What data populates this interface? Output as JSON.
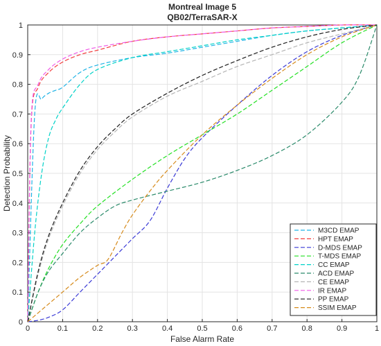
{
  "chart_data": {
    "type": "line",
    "title": "Montreal Image 5",
    "subtitle": "QB02/TerraSAR-X",
    "xlabel": "False Alarm Rate",
    "ylabel": "Detection Probability",
    "xlim": [
      0,
      1
    ],
    "ylim": [
      0,
      1
    ],
    "xticks": [
      "0",
      "0.1",
      "0.2",
      "0.3",
      "0.4",
      "0.5",
      "0.6",
      "0.7",
      "0.8",
      "0.9",
      "1"
    ],
    "yticks": [
      "0",
      "0.1",
      "0.2",
      "0.3",
      "0.4",
      "0.5",
      "0.6",
      "0.7",
      "0.8",
      "0.9",
      "1"
    ],
    "grid": true,
    "legend_position": "bottom-right",
    "line_style": "dashed",
    "series": [
      {
        "name": "M3CD EMAP",
        "color": "#1fb3e6",
        "x": [
          0,
          0.02,
          0.04,
          0.06,
          0.08,
          0.1,
          0.15,
          0.2,
          0.3,
          0.4,
          0.5,
          0.6,
          0.7,
          0.8,
          0.9,
          1
        ],
        "y": [
          0,
          0.7,
          0.75,
          0.77,
          0.78,
          0.79,
          0.84,
          0.865,
          0.89,
          0.905,
          0.925,
          0.945,
          0.965,
          0.98,
          0.99,
          1
        ]
      },
      {
        "name": "HPT EMAP",
        "color": "#f23c3c",
        "x": [
          0,
          0.01,
          0.03,
          0.06,
          0.1,
          0.15,
          0.2,
          0.3,
          0.4,
          0.5,
          0.6,
          0.7,
          0.8,
          0.9,
          1
        ],
        "y": [
          0,
          0.67,
          0.79,
          0.84,
          0.875,
          0.9,
          0.915,
          0.945,
          0.96,
          0.97,
          0.98,
          0.99,
          0.995,
          1,
          1
        ]
      },
      {
        "name": "D-MDS EMAP",
        "color": "#3a3ad6",
        "x": [
          0,
          0.03,
          0.06,
          0.1,
          0.15,
          0.2,
          0.25,
          0.3,
          0.35,
          0.4,
          0.45,
          0.5,
          0.6,
          0.7,
          0.8,
          0.9,
          1
        ],
        "y": [
          0,
          0.005,
          0.015,
          0.04,
          0.1,
          0.16,
          0.22,
          0.28,
          0.34,
          0.45,
          0.55,
          0.62,
          0.73,
          0.83,
          0.91,
          0.965,
          1
        ]
      },
      {
        "name": "T-MDS EMAP",
        "color": "#22e022",
        "x": [
          0,
          0.03,
          0.06,
          0.1,
          0.15,
          0.2,
          0.3,
          0.4,
          0.5,
          0.6,
          0.7,
          0.8,
          0.9,
          1
        ],
        "y": [
          0,
          0.1,
          0.18,
          0.26,
          0.33,
          0.39,
          0.48,
          0.56,
          0.63,
          0.7,
          0.78,
          0.86,
          0.94,
          1
        ]
      },
      {
        "name": "CC EMAP",
        "color": "#00d2c8",
        "x": [
          0,
          0.02,
          0.04,
          0.06,
          0.08,
          0.1,
          0.15,
          0.2,
          0.3,
          0.4,
          0.5,
          0.6,
          0.7,
          0.8,
          0.9,
          1
        ],
        "y": [
          0,
          0.3,
          0.5,
          0.62,
          0.68,
          0.72,
          0.8,
          0.85,
          0.89,
          0.91,
          0.93,
          0.95,
          0.965,
          0.98,
          0.99,
          1
        ]
      },
      {
        "name": "ACD EMAP",
        "color": "#2a8a6a",
        "x": [
          0,
          0.03,
          0.06,
          0.1,
          0.15,
          0.2,
          0.25,
          0.3,
          0.4,
          0.5,
          0.6,
          0.7,
          0.8,
          0.9,
          0.95,
          1
        ],
        "y": [
          0,
          0.1,
          0.17,
          0.23,
          0.3,
          0.35,
          0.39,
          0.41,
          0.44,
          0.47,
          0.51,
          0.56,
          0.63,
          0.74,
          0.83,
          1
        ]
      },
      {
        "name": "CE EMAP",
        "color": "#b4b4b4",
        "x": [
          0,
          0.03,
          0.06,
          0.1,
          0.15,
          0.2,
          0.25,
          0.3,
          0.4,
          0.5,
          0.6,
          0.7,
          0.8,
          0.9,
          1
        ],
        "y": [
          0,
          0.16,
          0.28,
          0.39,
          0.5,
          0.58,
          0.64,
          0.69,
          0.76,
          0.81,
          0.86,
          0.9,
          0.94,
          0.97,
          1
        ]
      },
      {
        "name": "IR EMAP",
        "color": "#f05ae6",
        "x": [
          0,
          0.01,
          0.03,
          0.06,
          0.1,
          0.15,
          0.2,
          0.3,
          0.4,
          0.5,
          0.6,
          0.7,
          0.8,
          0.9,
          1
        ],
        "y": [
          0,
          0.68,
          0.8,
          0.85,
          0.885,
          0.91,
          0.925,
          0.945,
          0.96,
          0.97,
          0.98,
          0.99,
          0.995,
          1,
          1
        ]
      },
      {
        "name": "PP EMAP",
        "color": "#1e1e1e",
        "x": [
          0,
          0.03,
          0.06,
          0.1,
          0.15,
          0.2,
          0.25,
          0.3,
          0.4,
          0.5,
          0.6,
          0.7,
          0.8,
          0.9,
          1
        ],
        "y": [
          0,
          0.17,
          0.29,
          0.4,
          0.51,
          0.59,
          0.65,
          0.7,
          0.77,
          0.83,
          0.88,
          0.925,
          0.96,
          0.985,
          1
        ]
      },
      {
        "name": "SSIM EMAP",
        "color": "#d68a1a",
        "x": [
          0,
          0.05,
          0.1,
          0.15,
          0.2,
          0.23,
          0.27,
          0.3,
          0.35,
          0.4,
          0.5,
          0.6,
          0.7,
          0.8,
          0.9,
          1
        ],
        "y": [
          0,
          0.05,
          0.1,
          0.15,
          0.19,
          0.21,
          0.3,
          0.36,
          0.44,
          0.51,
          0.63,
          0.73,
          0.82,
          0.9,
          0.96,
          1
        ]
      }
    ]
  }
}
